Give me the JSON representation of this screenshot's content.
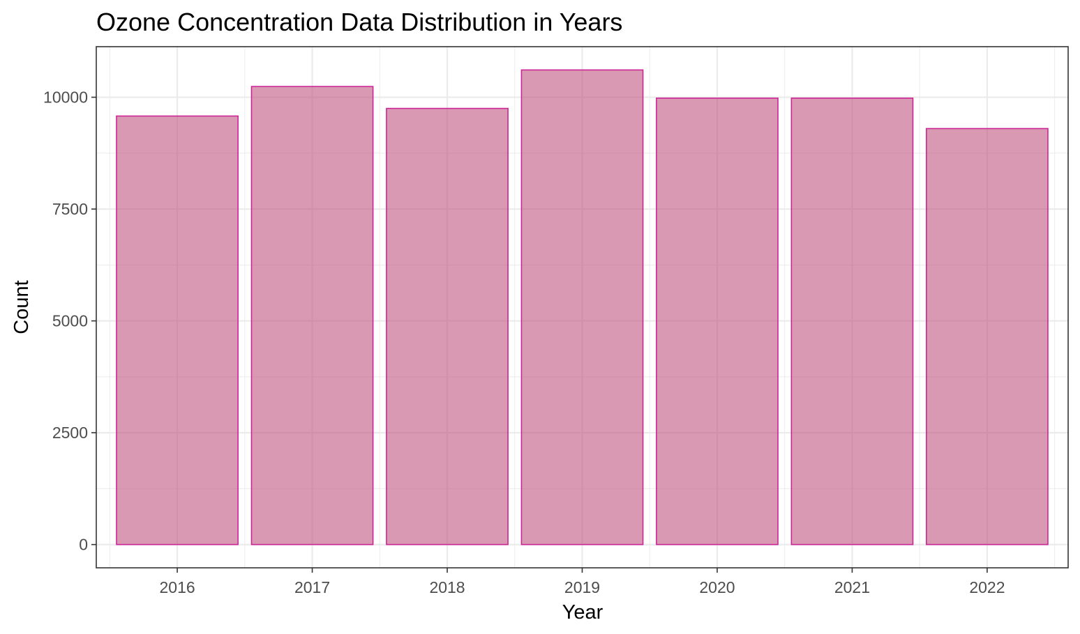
{
  "chart_data": {
    "type": "bar",
    "title": "Ozone Concentration Data Distribution in Years",
    "xlabel": "Year",
    "ylabel": "Count",
    "categories": [
      "2016",
      "2017",
      "2018",
      "2019",
      "2020",
      "2021",
      "2022"
    ],
    "values": [
      9580,
      10240,
      9750,
      10610,
      9980,
      9980,
      9300
    ],
    "ylim": [
      -520,
      11130
    ],
    "yticks": [
      0,
      2500,
      5000,
      7500,
      10000
    ],
    "grid": true,
    "legend": "none",
    "colors": {
      "bar_fill": "#c0557f",
      "bar_stroke": "#cc2596",
      "grid": "#ebebeb",
      "panel_border": "#333333"
    }
  }
}
